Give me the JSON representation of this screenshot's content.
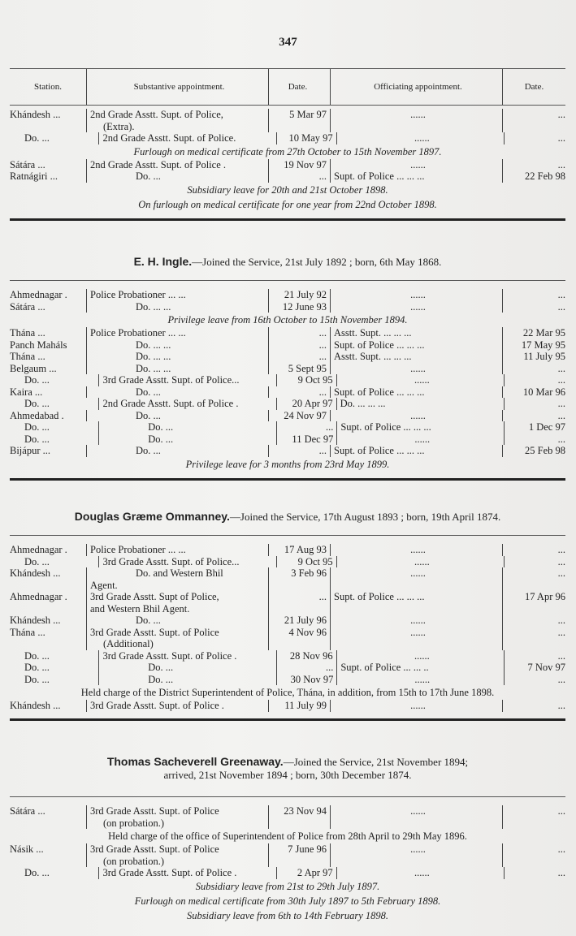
{
  "page_number": "347",
  "columns": [
    "Station.",
    "Substantive appointment.",
    "Date.",
    "Officiating appointment.",
    "Date."
  ],
  "sections": [
    {
      "heading_name": "",
      "heading_rest": "",
      "heading_rest2": "",
      "rows": [
        [
          "Khándesh ...",
          "2nd Grade Asstt. Supt. of Police,",
          "5 Mar 97",
          "......",
          "..."
        ],
        [
          "",
          "(Extra).",
          "",
          "",
          ""
        ],
        [
          "Do. ...",
          "2nd Grade Asstt. Supt. of Police.",
          "10 May 97",
          "......",
          "..."
        ],
        [
          "*",
          "Furlough on medical certificate from 27th October to 15th November 1897.",
          "",
          "",
          ""
        ],
        [
          "Sátára ...",
          "2nd Grade Asstt. Supt. of Police .",
          "19 Nov 97",
          "......",
          "..."
        ],
        [
          "Ratnágiri ...",
          "Do. ...",
          "...",
          "Supt. of Police ... ... ...",
          "22 Feb 98"
        ]
      ],
      "notes": [
        "Subsidiary leave for 20th and 21st October 1898.",
        "On furlough on medical certificate for one year from 22nd October 1898."
      ]
    },
    {
      "heading_name": "E. H. Ingle.",
      "heading_rest": "—Joined the Service, 21st July 1892 ; born, 6th May 1868.",
      "heading_rest2": "",
      "rows": [
        [
          "Ahmednagar .",
          "Police Probationer ... ...",
          "21 July 92",
          "......",
          "..."
        ],
        [
          "Sátára ...",
          "Do. ... ...",
          "12 June 93",
          "......",
          "..."
        ],
        [
          "*",
          "Privilege leave from 16th October to 15th November 1894.",
          "",
          "",
          ""
        ],
        [
          "Thána ...",
          "Police Probationer ... ...",
          "...",
          "Asstt. Supt. ... ... ...",
          "22 Mar 95"
        ],
        [
          "Panch Maháls",
          "Do. ... ...",
          "...",
          "Supt. of Police ... ... ...",
          "17 May 95"
        ],
        [
          "Thána ...",
          "Do. ... ...",
          "...",
          "Asstt. Supt. ... ... ...",
          "11 July 95"
        ],
        [
          "Belgaum ...",
          "Do. ... ...",
          "5 Sept 95",
          "......",
          "..."
        ],
        [
          "Do. ...",
          "3rd Grade Asstt. Supt. of Police...",
          "9 Oct 95",
          "......",
          "..."
        ],
        [
          "Kaira ...",
          "Do. ...",
          "...",
          "Supt. of Police ... ... ...",
          "10 Mar 96"
        ],
        [
          "Do. ...",
          "2nd Grade Asstt. Supt. of Police .",
          "20 Apr 97",
          "Do. ... ... ...",
          "..."
        ],
        [
          "Ahmedabad .",
          "Do. ...",
          "24 Nov 97",
          "......",
          "..."
        ],
        [
          "Do. ...",
          "Do. ...",
          "...",
          "Supt. of Police ... ... ...",
          "1 Dec 97"
        ],
        [
          "Do. ...",
          "Do. ...",
          "11 Dec 97",
          "......",
          "..."
        ],
        [
          "Bijápur ...",
          "Do. ...",
          "...",
          "Supt. of Police ... ... ...",
          "25 Feb 98"
        ]
      ],
      "notes": [
        "Privilege leave for 3 months from 23rd May 1899."
      ]
    },
    {
      "heading_name": "Douglas Græme Ommanney.",
      "heading_rest": "—Joined the Service, 17th August 1893 ; born, 19th April 1874.",
      "heading_rest2": "",
      "rows": [
        [
          "Ahmednagar .",
          "Police Probationer ... ...",
          "17 Aug 93",
          "......",
          "..."
        ],
        [
          "Do. ...",
          "3rd Grade Asstt. Supt. of Police...",
          "9 Oct 95",
          "......",
          "..."
        ],
        [
          "Khándesh ...",
          "Do. and Western Bhil",
          "3 Feb 96",
          "......",
          "..."
        ],
        [
          "",
          "Agent.",
          "",
          "",
          ""
        ],
        [
          "Ahmednagar .",
          "3rd Grade Asstt. Supt of Police,",
          "...",
          "Supt. of Police ... ... ...",
          "17 Apr 96"
        ],
        [
          "",
          "and Western Bhil Agent.",
          "",
          "",
          ""
        ],
        [
          "Khándesh ...",
          "Do. ...",
          "21 July 96",
          "......",
          "..."
        ],
        [
          "Thána ...",
          "3rd Grade Asstt. Supt. of Police",
          "4 Nov 96",
          "......",
          "..."
        ],
        [
          "",
          "(Additional)",
          "",
          "",
          ""
        ],
        [
          "Do. ...",
          "3rd Grade Asstt. Supt. of Police .",
          "28 Nov 96",
          "......",
          "..."
        ],
        [
          "Do. ...",
          "Do. ...",
          "...",
          "Supt. of Police ... ... ..",
          "7 Nov 97"
        ],
        [
          "Do. ...",
          "Do. ...",
          "30 Nov 97",
          "......",
          "..."
        ],
        [
          "#",
          "Held charge of the District Superintendent of Police, Thána, in addition, from 15th to 17th June 1898.",
          "",
          "",
          ""
        ],
        [
          "Khándesh ...",
          "3rd Grade Asstt. Supt. of Police .",
          "11 July 99",
          "......",
          "..."
        ]
      ],
      "notes": []
    },
    {
      "heading_name": "Thomas Sacheverell Greenaway.",
      "heading_rest": "—Joined the Service, 21st November 1894;",
      "heading_rest2": "arrived, 21st November 1894 ; born, 30th December 1874.",
      "rows": [
        [
          "Sátára ...",
          "3rd Grade Asstt. Supt. of Police",
          "23 Nov 94",
          "......",
          "..."
        ],
        [
          "",
          "(on probation.)",
          "",
          "",
          ""
        ],
        [
          "#",
          "Held charge of the office of Superintendent of Police from 28th April to 29th May 1896.",
          "",
          "",
          ""
        ],
        [
          "Násik ...",
          "3rd Grade Asstt. Supt. of Police",
          "7 June 96",
          "......",
          "..."
        ],
        [
          "",
          "(on probation.)",
          "",
          "",
          ""
        ],
        [
          "Do. ...",
          "3rd Grade Asstt. Supt. of Police .",
          "2 Apr 97",
          "......",
          "..."
        ]
      ],
      "notes": [
        "Subsidiary leave from 21st to 29th July 1897.",
        "Furlough on medical certificate from 30th July 1897 to 5th February 1898.",
        "Subsidiary leave from 6th to 14th February 1898."
      ]
    }
  ]
}
